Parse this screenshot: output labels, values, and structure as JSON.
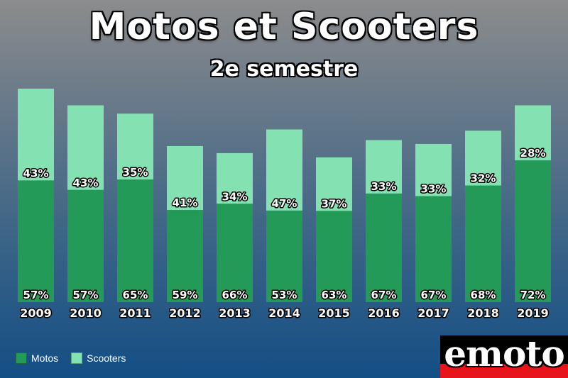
{
  "title": "Motos et Scooters",
  "subtitle": "2e semestre",
  "colors": {
    "motos": "#249a58",
    "scooters": "#84e1b1"
  },
  "legend": {
    "motos": "Motos",
    "scooters": "Scooters"
  },
  "logo": {
    "text": "emoto"
  },
  "chart_data": {
    "type": "bar",
    "stacked": true,
    "title": "Motos et Scooters",
    "subtitle": "2e semestre",
    "categories": [
      "2009",
      "2010",
      "2011",
      "2012",
      "2013",
      "2014",
      "2015",
      "2016",
      "2017",
      "2018",
      "2019"
    ],
    "relative_totals": [
      100,
      92.2,
      88.3,
      73.1,
      69.8,
      80.9,
      67.8,
      75.9,
      74.1,
      80.3,
      92.2
    ],
    "series": [
      {
        "name": "Motos",
        "values": [
          57,
          57,
          65,
          59,
          66,
          53,
          63,
          67,
          67,
          68,
          72
        ],
        "labels": [
          "57%",
          "57%",
          "65%",
          "59%",
          "66%",
          "53%",
          "63%",
          "67%",
          "67%",
          "68%",
          "72%"
        ]
      },
      {
        "name": "Scooters",
        "values": [
          43,
          43,
          35,
          41,
          34,
          47,
          37,
          33,
          33,
          32,
          28
        ],
        "labels": [
          "43%",
          "43%",
          "35%",
          "41%",
          "34%",
          "47%",
          "37%",
          "33%",
          "33%",
          "32%",
          "28%"
        ]
      }
    ],
    "legend_position": "bottom-left",
    "grid": false,
    "y_axis_visible": false
  }
}
